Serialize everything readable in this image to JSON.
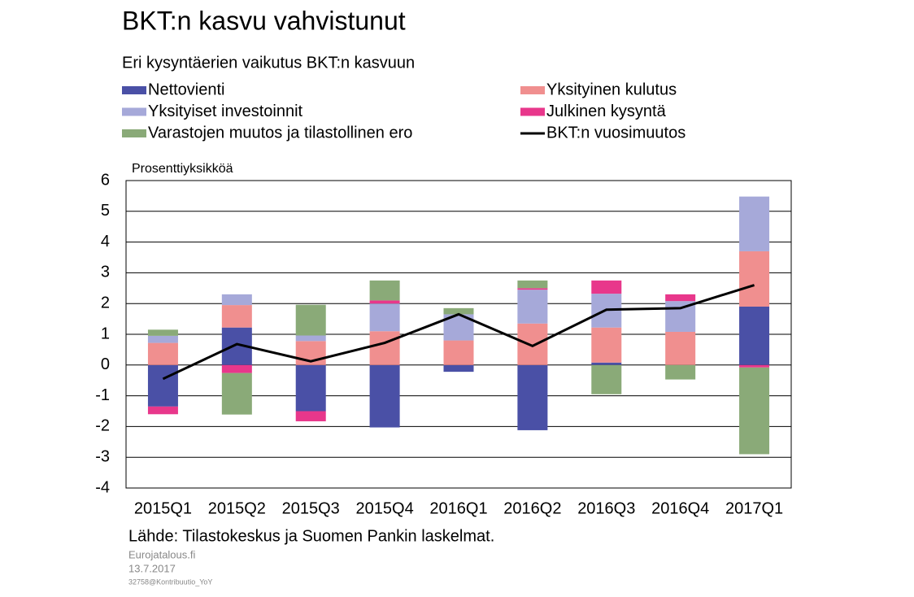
{
  "chart_data": {
    "type": "bar",
    "title": "BKT:n kasvu vahvistunut",
    "subtitle": "Eri kysyntäerien vaikutus BKT:n kasvuun",
    "y_label": "Prosenttiyksikköä",
    "source": "Lähde: Tilastokeskus ja Suomen Pankin laskelmat.",
    "footer": [
      "Eurojatalous.fi",
      "13.7.2017",
      "32758@Kontribuutio_YoY"
    ],
    "stacked": true,
    "categories": [
      "2015Q1",
      "2015Q2",
      "2015Q3",
      "2015Q4",
      "2016Q1",
      "2016Q2",
      "2016Q3",
      "2016Q4",
      "2017Q1"
    ],
    "series": [
      {
        "name": "Nettovienti",
        "color": "#4a50a6",
        "values": [
          -1.35,
          1.22,
          -1.5,
          -2.03,
          -0.22,
          -2.12,
          0.08,
          0,
          1.9
        ]
      },
      {
        "name": "Yksityinen kulutus",
        "color": "#f08f8f",
        "values": [
          0.72,
          0.73,
          0.78,
          1.1,
          0.8,
          1.35,
          1.14,
          1.08,
          1.8
        ]
      },
      {
        "name": "Yksityiset investoinnit",
        "color": "#a6a9d9",
        "values": [
          0.23,
          0.35,
          0.18,
          0.9,
          0.85,
          1.1,
          1.1,
          1.0,
          1.78
        ]
      },
      {
        "name": "Julkinen kysyntä",
        "color": "#e8378b",
        "values": [
          -0.25,
          -0.26,
          -0.33,
          0.1,
          0,
          0.05,
          0.43,
          0.22,
          -0.08
        ]
      },
      {
        "name": "Varastojen muutos ja tilastollinen ero",
        "color": "#8aaa78",
        "values": [
          0.2,
          -1.35,
          1.0,
          0.65,
          0.2,
          0.25,
          -0.95,
          -0.47,
          -2.82
        ]
      },
      {
        "name": "BKT:n vuosimuutos",
        "color": "#000000",
        "type": "line",
        "values": [
          -0.45,
          0.68,
          0.12,
          0.72,
          1.65,
          0.62,
          1.8,
          1.85,
          2.6
        ]
      }
    ],
    "ylim": [
      -4,
      6
    ],
    "yticks": [
      -4,
      -3,
      -2,
      -1,
      0,
      1,
      2,
      3,
      4,
      5,
      6
    ],
    "grid": true
  }
}
